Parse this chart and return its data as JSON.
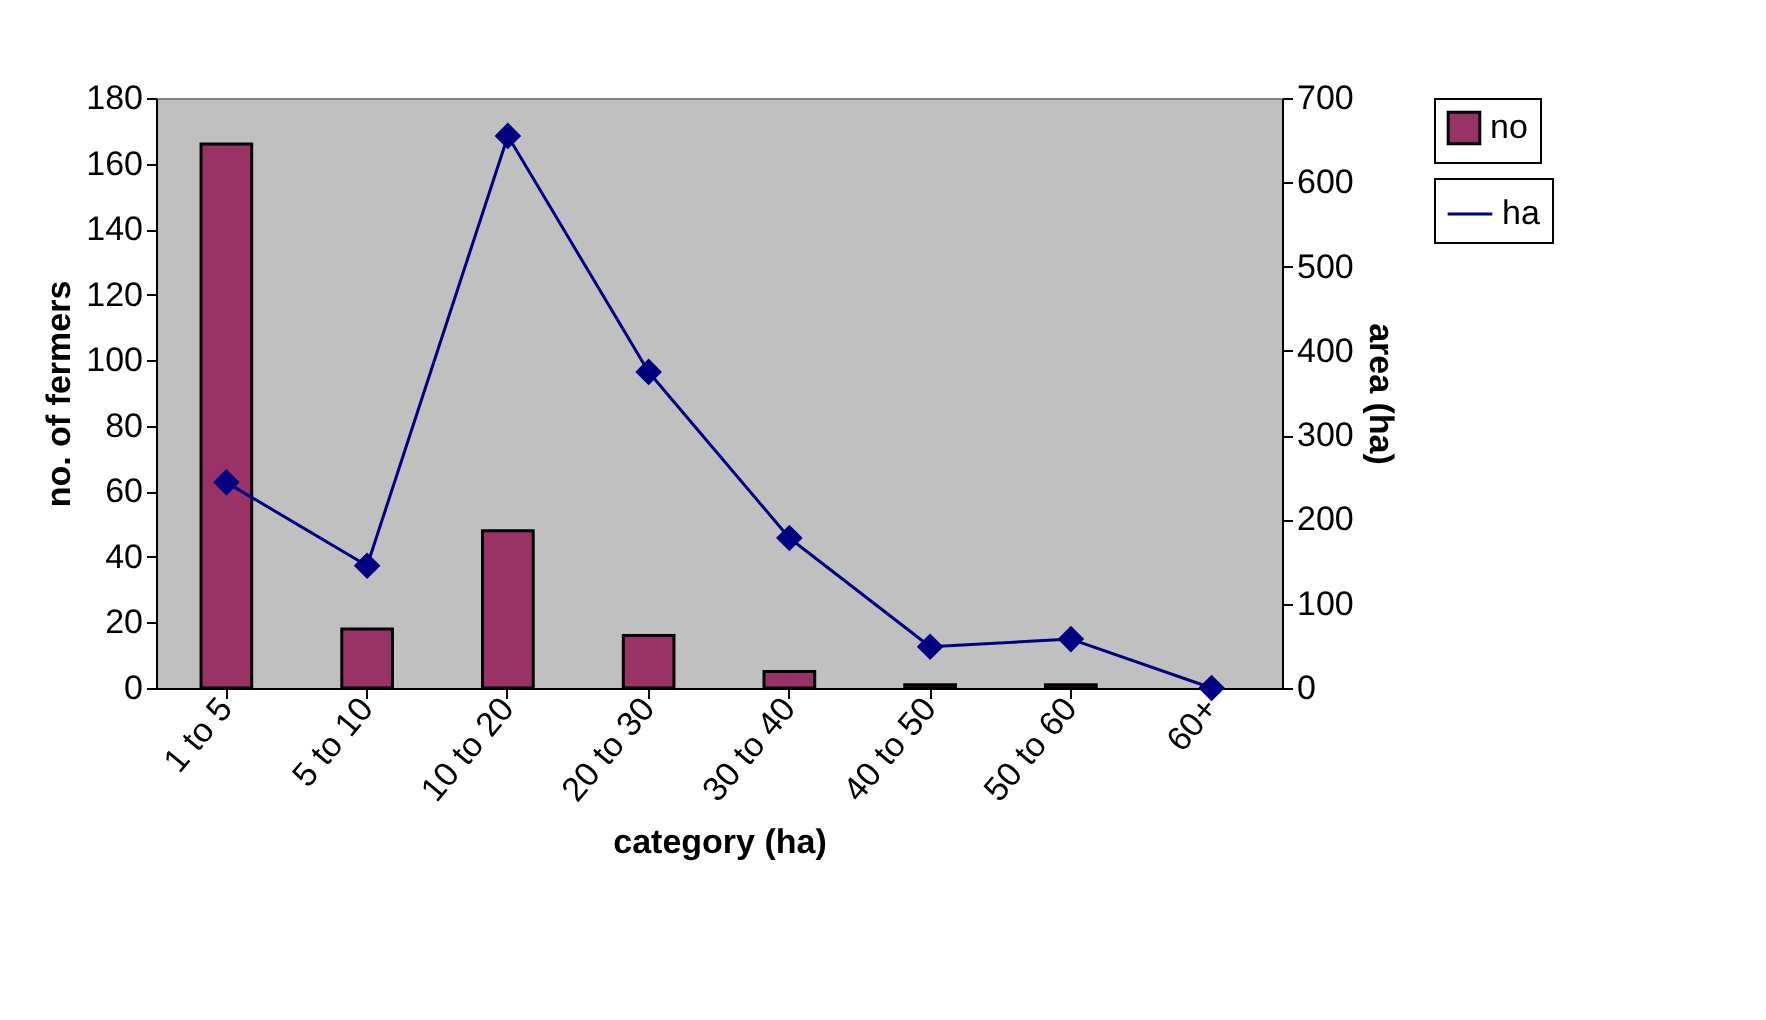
{
  "chart_data": {
    "type": "bar",
    "xlabel": "category (ha)",
    "ylabel": "no. of fermers",
    "y2label": "area (ha)",
    "categories": [
      "1 to 5",
      "5 to 10",
      "10 to 20",
      "20 to 30",
      "30 to 40",
      "40 to 50",
      "50 to 60",
      "60+"
    ],
    "series": [
      {
        "name": "no",
        "color": "#993366",
        "values": [
          166,
          18,
          48,
          16,
          5,
          1,
          1,
          null
        ]
      },
      {
        "name": "ha",
        "type": "line",
        "axis": "y2",
        "color": "#000080",
        "marker": "diamond",
        "values": [
          244,
          145,
          655,
          375,
          178,
          49,
          58,
          0
        ]
      }
    ],
    "ylim": [
      0,
      180
    ],
    "yticks": [
      0,
      20,
      40,
      60,
      80,
      100,
      120,
      140,
      160,
      180
    ],
    "y2lim": [
      0,
      700
    ],
    "y2ticks": [
      0,
      100,
      200,
      300,
      400,
      500,
      600,
      700
    ],
    "grid": false,
    "legend": "right"
  }
}
